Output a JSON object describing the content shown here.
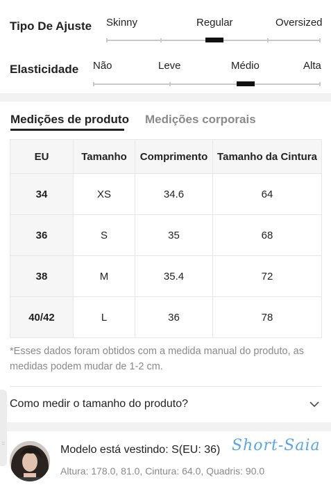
{
  "fit": {
    "type_label": "Tipo De Ajuste",
    "type_options": [
      "Skinny",
      "Regular",
      "Oversized"
    ],
    "type_selected": "Regular",
    "elasticity_label": "Elasticidade",
    "elasticity_options": [
      "Não",
      "Leve",
      "Médio",
      "Alta"
    ],
    "elasticity_selected": "Médio"
  },
  "tabs": {
    "product": "Medições de produto",
    "body": "Medições corporais",
    "active": "product"
  },
  "table": {
    "headers": [
      "EU",
      "Tamanho",
      "Comprimento",
      "Tamanho da Cintura"
    ],
    "rows": [
      [
        "34",
        "XS",
        "34.6",
        "64"
      ],
      [
        "36",
        "S",
        "35",
        "68"
      ],
      [
        "38",
        "M",
        "35.4",
        "72"
      ],
      [
        "40/42",
        "L",
        "36",
        "78"
      ]
    ]
  },
  "note": "*Esses dados foram obtidos com a medida manual do produto, as medidas podem mudar de 1-2 cm.",
  "howto": {
    "title": "Como medir o tamanho do produto?"
  },
  "model": {
    "title": "Modelo está vestindo: S(EU: 36)",
    "stats": "Altura: 178.0,   81.0,  Cintura: 64.0,  Quadris: 90.0",
    "stamp_text": "Short-Saia"
  }
}
